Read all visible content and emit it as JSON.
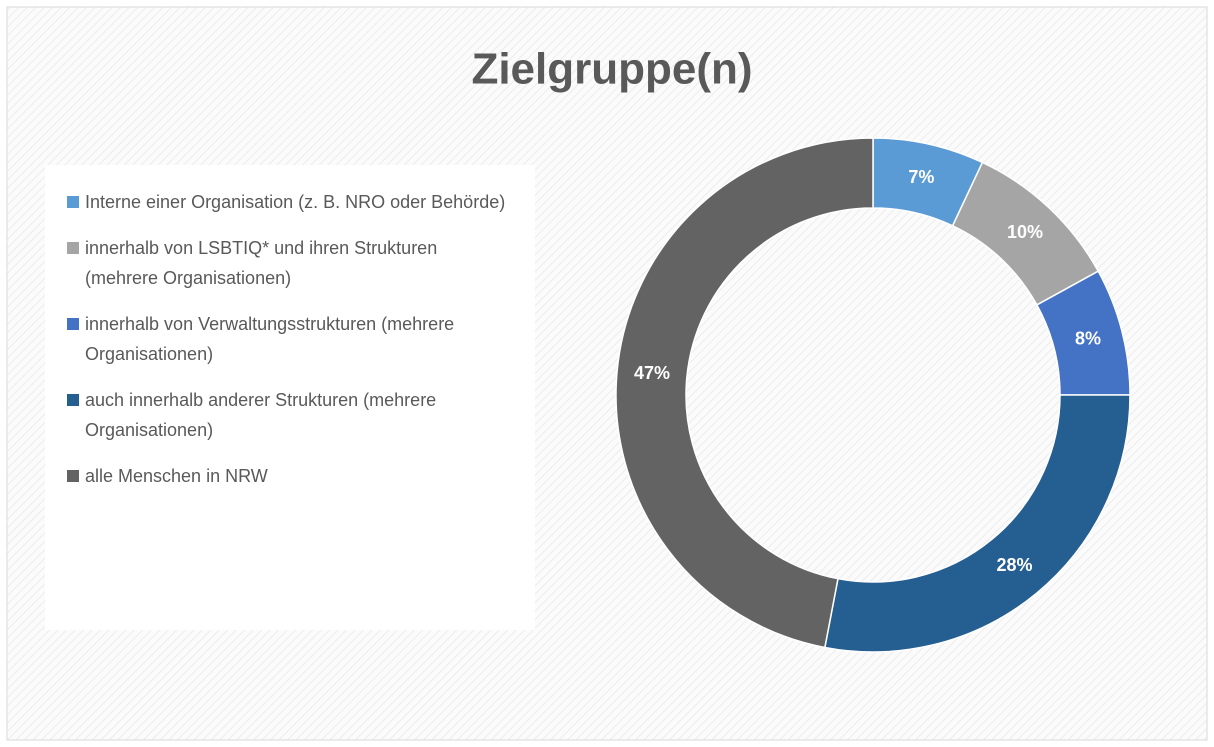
{
  "chart_data": {
    "type": "donut",
    "title": "Zielgruppe(n)",
    "categories": [
      "Interne einer Organisation (z. B. NRO oder Behörde)",
      "innerhalb von LSBTIQ* und ihren Strukturen (mehrere Organisationen)",
      "innerhalb von Verwaltungsstrukturen (mehrere Organisationen)",
      "auch innerhalb anderer Strukturen (mehrere Organisationen)",
      "alle Menschen in NRW"
    ],
    "values": [
      7,
      10,
      8,
      28,
      47
    ],
    "value_labels": [
      "7%",
      "10%",
      "8%",
      "28%",
      "47%"
    ],
    "colors": [
      "#5b9bd5",
      "#a5a5a5",
      "#4472c4",
      "#255e91",
      "#636363"
    ],
    "legend": "left"
  }
}
